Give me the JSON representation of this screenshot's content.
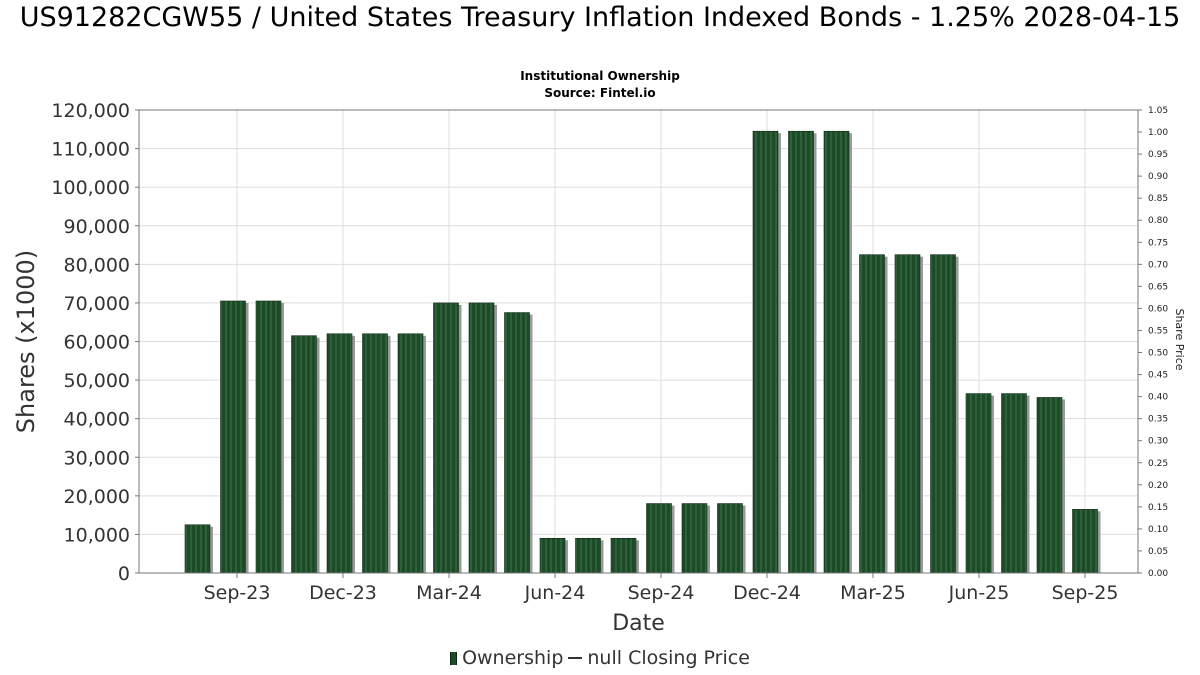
{
  "header": {
    "title": "US91282CGW55 / United States Treasury Inflation Indexed Bonds - 1.25% 2028-04-15",
    "subtitle_1": "Institutional Ownership",
    "subtitle_2": "Source: Fintel.io"
  },
  "legend": {
    "ownership_label": "Ownership",
    "price_label": "null Closing Price"
  },
  "colors": {
    "bar_fill": "#1f4a2a",
    "bar_stripe": "#2d6138",
    "bar_shadow": "#9a9a9a",
    "grid": "#dddddd",
    "axis": "#777777"
  },
  "chart_data": {
    "type": "bar",
    "xlabel": "Date",
    "ylabel": "Shares (x1000)",
    "y2label": "Share Price",
    "ylim": [
      0,
      120000
    ],
    "y2lim": [
      0,
      1.05
    ],
    "yticks": [
      "0",
      "10,000",
      "20,000",
      "30,000",
      "40,000",
      "50,000",
      "60,000",
      "70,000",
      "80,000",
      "90,000",
      "100,000",
      "110,000",
      "120,000"
    ],
    "y2ticks": [
      "0.00",
      "0.05",
      "0.10",
      "0.15",
      "0.20",
      "0.25",
      "0.30",
      "0.35",
      "0.40",
      "0.45",
      "0.50",
      "0.55",
      "0.60",
      "0.65",
      "0.70",
      "0.75",
      "0.80",
      "0.85",
      "0.90",
      "0.95",
      "1.00",
      "1.05"
    ],
    "xticks": [
      "Sep-23",
      "Dec-23",
      "Mar-24",
      "Jun-24",
      "Sep-24",
      "Dec-24",
      "Mar-25",
      "Jun-25",
      "Sep-25"
    ],
    "grid": true,
    "legend_position": "bottom",
    "series": [
      {
        "name": "Ownership",
        "values": [
          12500,
          70500,
          70500,
          61500,
          62000,
          62000,
          62000,
          70000,
          70000,
          67500,
          9000,
          9000,
          9000,
          18000,
          18000,
          18000,
          114500,
          114500,
          114500,
          82500,
          82500,
          82500,
          46500,
          46500,
          45500,
          16500
        ]
      }
    ]
  }
}
